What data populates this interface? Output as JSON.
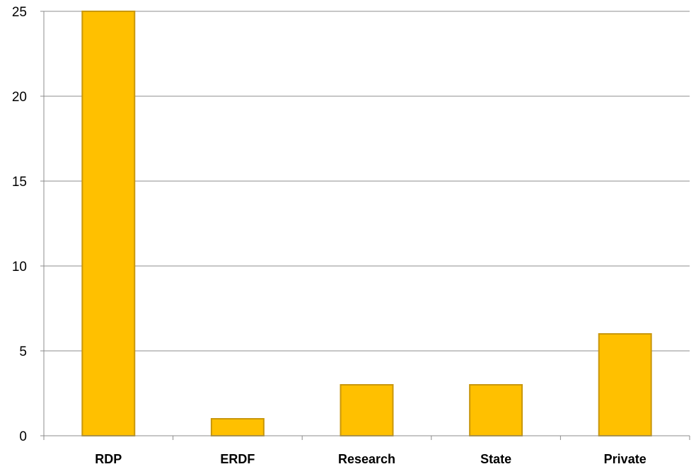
{
  "chart_data": {
    "type": "bar",
    "title": "",
    "xlabel": "",
    "ylabel": "",
    "categories": [
      "RDP",
      "ERDF",
      "Research",
      "State",
      "Private"
    ],
    "values": [
      25,
      1,
      3,
      3,
      6
    ],
    "ylim": [
      0,
      25
    ],
    "yticks": [
      0,
      5,
      10,
      15,
      20,
      25
    ],
    "grid": true,
    "legend": "none",
    "bar_fill": "#FFC000",
    "bar_stroke": "#C9970B",
    "grid_color": "#8C8C8C",
    "axis_color": "#8C8C8C"
  }
}
